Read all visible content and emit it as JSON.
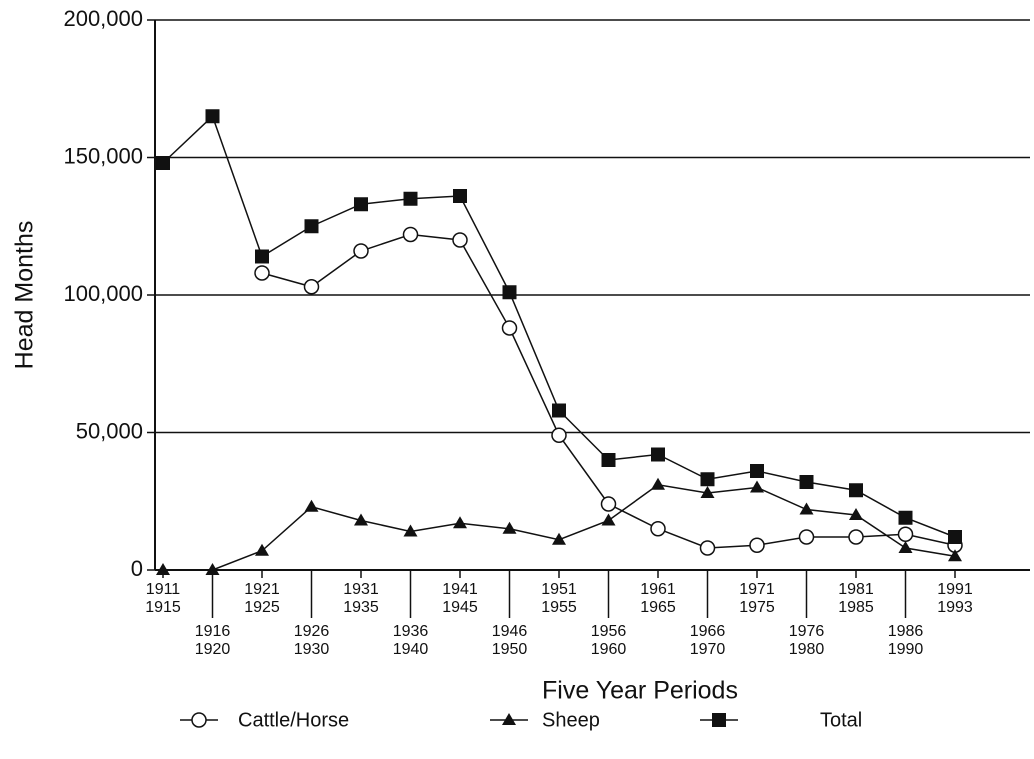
{
  "chart_data": {
    "type": "line",
    "x_label": "Five Year Periods",
    "y_label": "Head Months",
    "categories": [
      [
        "1911",
        "1915"
      ],
      [
        "1916",
        "1920"
      ],
      [
        "1921",
        "1925"
      ],
      [
        "1926",
        "1930"
      ],
      [
        "1931",
        "1935"
      ],
      [
        "1936",
        "1940"
      ],
      [
        "1941",
        "1945"
      ],
      [
        "1946",
        "1950"
      ],
      [
        "1951",
        "1955"
      ],
      [
        "1956",
        "1960"
      ],
      [
        "1961",
        "1965"
      ],
      [
        "1966",
        "1970"
      ],
      [
        "1971",
        "1975"
      ],
      [
        "1976",
        "1980"
      ],
      [
        "1981",
        "1985"
      ],
      [
        "1986",
        "1990"
      ],
      [
        "1991",
        "1993"
      ]
    ],
    "series": [
      {
        "name": "Cattle/Horse",
        "color": "#111111",
        "marker": "circle",
        "values": [
          null,
          null,
          108000,
          103000,
          116000,
          122000,
          120000,
          88000,
          49000,
          24000,
          15000,
          8000,
          9000,
          12000,
          12000,
          13000,
          9000
        ]
      },
      {
        "name": "Sheep",
        "color": "#111111",
        "marker": "triangle",
        "values": [
          0,
          0,
          7000,
          23000,
          18000,
          14000,
          17000,
          15000,
          11000,
          18000,
          31000,
          28000,
          30000,
          22000,
          20000,
          8000,
          5000
        ]
      },
      {
        "name": "Total",
        "color": "#111111",
        "marker": "square",
        "values": [
          148000,
          165000,
          114000,
          125000,
          133000,
          135000,
          136000,
          101000,
          58000,
          40000,
          42000,
          33000,
          36000,
          32000,
          29000,
          19000,
          12000
        ]
      }
    ],
    "ylim": [
      0,
      200000
    ],
    "yticks": [
      0,
      {
        "value": 50000,
        "label": "50,000"
      },
      {
        "value": 100000,
        "label": "100,000"
      },
      {
        "value": 150000,
        "label": "150,000"
      },
      {
        "value": 200000,
        "label": "200,000"
      }
    ],
    "grid": true,
    "legend": "bottom"
  }
}
